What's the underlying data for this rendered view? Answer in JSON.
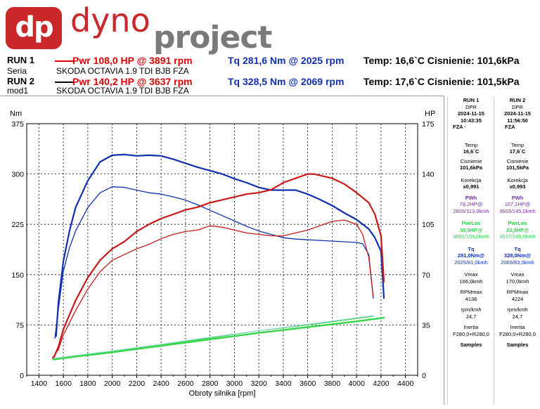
{
  "logo": {
    "mark": "dp",
    "word1": "dyno",
    "word2": "project"
  },
  "runs": [
    {
      "label": "RUN 1",
      "sub": "Seria",
      "pwr": "Pwr  108,0 HP @ 3891 rpm",
      "tq": "Tq 281,6 Nm @ 2025 rpm",
      "temp": "Temp: 16,6`C   Cisnienie: 101,6kPa",
      "car": "SKODA OCTAVIA 1.9 TDI BJB FZA",
      "color": "#e00000"
    },
    {
      "label": "RUN 2",
      "sub": "mod1",
      "pwr": "Pwr  140,2 HP @ 3637 rpm",
      "tq": "Tq 328,5 Nm @ 2069 rpm",
      "temp": "Temp: 17,6`C   Cisnienie: 101,5kPa",
      "car": "SKODA OCTAVIA 1.9 TDI BJB FZA",
      "color": "#e00000"
    }
  ],
  "side_panel": {
    "col1": {
      "head": [
        "RUN 1",
        "DPR",
        "2024-11-15",
        "10:43:35",
        "FZA ·"
      ],
      "temp_label": "Temp",
      "temp": "16,6`C",
      "cis_label": "Cisnienie",
      "cis": "101,6kPa",
      "kor_label": "Korekcja",
      "kor": "x0,991",
      "pwh_label": "PWh",
      "pwh": "78,2HP@",
      "pwh2": "2826/113,0kmh",
      "pwrlos_label": "PwrLos",
      "pwrlos": "38,5HP@",
      "pwrlos2": "3891/156,0kmh",
      "tq_label": "Tq",
      "tq": "281,0Nm@",
      "tq2": "2025/81,0kmh",
      "vmax_label": "Vmax",
      "vmax": "166,0kmh",
      "rpmmax_label": "RPMmax",
      "rpmmax": "4136",
      "rpmkmh_label": "rpm/kmh",
      "rpmkmh": "24,7",
      "inertia_label": "Inertia",
      "inertia": "F280,0+R280,0",
      "samples_label": "Samples"
    },
    "col2": {
      "head": [
        "RUN 2",
        "DPR",
        "2024-11-15",
        "11:56:50",
        "FZA"
      ],
      "temp_label": "Temp",
      "temp": "17,6`C",
      "cis_label": "Cisnienie",
      "cis": "101,5kPa",
      "kor_label": "Korekcja",
      "kor": "x0,993",
      "pwh_label": "PWh",
      "pwh": "107,1HP@",
      "pwh2": "3603/145,0kmh",
      "pwrlos_label": "PwrLos",
      "pwrlos": "33,3HP@",
      "pwrlos2": "3637/146,0kmh",
      "tq_label": "Tq",
      "tq": "328,0Nm@",
      "tq2": "2069/83,0kmh",
      "vmax_label": "Vmax",
      "vmax": "170,0kmh",
      "rpmmax_label": "RPMmax",
      "rpmmax": "4224",
      "rpmkmh_label": "rpm/kmh",
      "rpmkmh": "24,7",
      "inertia_label": "Inertia",
      "inertia": "F280,0+R280,0",
      "samples_label": "Samples"
    }
  },
  "chart_data": {
    "type": "line",
    "xlabel": "Obroty silnika [rpm]",
    "ylabel_left": "Nm",
    "ylabel_right": "HP",
    "xlim": [
      1300,
      4500
    ],
    "ylim_left": [
      0,
      375
    ],
    "ylim_right": [
      0,
      175
    ],
    "x_ticks": [
      1400,
      1600,
      1800,
      2000,
      2200,
      2400,
      2600,
      2800,
      3000,
      3200,
      3400,
      3600,
      3800,
      4000,
      4200,
      4400
    ],
    "y_ticks_left": [
      0,
      75,
      150,
      225,
      300,
      375
    ],
    "y_ticks_right": [
      0,
      35,
      70,
      105,
      140,
      175
    ],
    "grid": true,
    "series": [
      {
        "axis": "left",
        "color": "#1030b0",
        "width": 2.2,
        "points": [
          [
            1540,
            58
          ],
          [
            1560,
            110
          ],
          [
            1600,
            170
          ],
          [
            1650,
            215
          ],
          [
            1700,
            250
          ],
          [
            1800,
            290
          ],
          [
            1900,
            318
          ],
          [
            2000,
            328
          ],
          [
            2100,
            329
          ],
          [
            2200,
            327
          ],
          [
            2300,
            328
          ],
          [
            2400,
            327
          ],
          [
            2500,
            322
          ],
          [
            2600,
            316
          ],
          [
            2700,
            310
          ],
          [
            2800,
            305
          ],
          [
            2900,
            300
          ],
          [
            3000,
            293
          ],
          [
            3100,
            287
          ],
          [
            3200,
            280
          ],
          [
            3300,
            276
          ],
          [
            3400,
            276
          ],
          [
            3500,
            276
          ],
          [
            3600,
            270
          ],
          [
            3700,
            262
          ],
          [
            3800,
            253
          ],
          [
            3900,
            242
          ],
          [
            4000,
            232
          ],
          [
            4100,
            218
          ],
          [
            4150,
            205
          ],
          [
            4200,
            185
          ],
          [
            4224,
            115
          ]
        ]
      },
      {
        "axis": "left",
        "color": "#1030b0",
        "width": 1.3,
        "points": [
          [
            1530,
            55
          ],
          [
            1560,
            100
          ],
          [
            1600,
            155
          ],
          [
            1650,
            190
          ],
          [
            1700,
            215
          ],
          [
            1800,
            250
          ],
          [
            1900,
            272
          ],
          [
            2000,
            281
          ],
          [
            2100,
            280
          ],
          [
            2200,
            276
          ],
          [
            2300,
            272
          ],
          [
            2400,
            270
          ],
          [
            2500,
            266
          ],
          [
            2600,
            261
          ],
          [
            2700,
            254
          ],
          [
            2800,
            246
          ],
          [
            2900,
            238
          ],
          [
            3000,
            230
          ],
          [
            3100,
            222
          ],
          [
            3200,
            215
          ],
          [
            3300,
            210
          ],
          [
            3400,
            205
          ],
          [
            3500,
            203
          ],
          [
            3600,
            202
          ],
          [
            3700,
            201
          ],
          [
            3800,
            200
          ],
          [
            3900,
            199
          ],
          [
            4000,
            198
          ],
          [
            4050,
            196
          ],
          [
            4100,
            180
          ],
          [
            4136,
            115
          ]
        ]
      },
      {
        "axis": "right",
        "color": "#c81818",
        "width": 2.2,
        "points": [
          [
            1520,
            12
          ],
          [
            1560,
            20
          ],
          [
            1600,
            32
          ],
          [
            1700,
            52
          ],
          [
            1800,
            68
          ],
          [
            1900,
            80
          ],
          [
            2000,
            88
          ],
          [
            2100,
            93
          ],
          [
            2200,
            100
          ],
          [
            2300,
            105
          ],
          [
            2400,
            109
          ],
          [
            2500,
            112
          ],
          [
            2600,
            115
          ],
          [
            2700,
            117
          ],
          [
            2800,
            120
          ],
          [
            2900,
            122
          ],
          [
            3000,
            124
          ],
          [
            3100,
            126
          ],
          [
            3200,
            127
          ],
          [
            3300,
            129
          ],
          [
            3400,
            134
          ],
          [
            3500,
            137
          ],
          [
            3600,
            140
          ],
          [
            3650,
            140
          ],
          [
            3700,
            139
          ],
          [
            3800,
            137
          ],
          [
            3900,
            133
          ],
          [
            4000,
            127
          ],
          [
            4100,
            120
          ],
          [
            4150,
            112
          ],
          [
            4200,
            97
          ],
          [
            4224,
            65
          ]
        ]
      },
      {
        "axis": "right",
        "color": "#c81818",
        "width": 1.3,
        "points": [
          [
            1510,
            12
          ],
          [
            1560,
            18
          ],
          [
            1600,
            28
          ],
          [
            1700,
            45
          ],
          [
            1800,
            60
          ],
          [
            1900,
            72
          ],
          [
            2000,
            80
          ],
          [
            2100,
            84
          ],
          [
            2200,
            88
          ],
          [
            2300,
            91
          ],
          [
            2400,
            95
          ],
          [
            2500,
            98
          ],
          [
            2600,
            100
          ],
          [
            2700,
            101
          ],
          [
            2800,
            104
          ],
          [
            2900,
            103
          ],
          [
            3000,
            101
          ],
          [
            3100,
            99
          ],
          [
            3200,
            98
          ],
          [
            3300,
            97
          ],
          [
            3400,
            97
          ],
          [
            3500,
            99
          ],
          [
            3600,
            101
          ],
          [
            3700,
            104
          ],
          [
            3800,
            107
          ],
          [
            3900,
            108
          ],
          [
            4000,
            105
          ],
          [
            4050,
            98
          ],
          [
            4100,
            82
          ],
          [
            4136,
            55
          ]
        ]
      },
      {
        "axis": "right",
        "color": "#35d64a",
        "width": 2.4,
        "points": [
          [
            1520,
            11
          ],
          [
            1700,
            13
          ],
          [
            2000,
            16
          ],
          [
            2400,
            20.5
          ],
          [
            2800,
            25
          ],
          [
            3200,
            29.5
          ],
          [
            3600,
            33.5
          ],
          [
            4000,
            37.5
          ],
          [
            4224,
            40
          ]
        ]
      },
      {
        "axis": "right",
        "color": "#35d64a",
        "width": 1.3,
        "points": [
          [
            1510,
            11
          ],
          [
            1700,
            13.2
          ],
          [
            2000,
            16.5
          ],
          [
            2400,
            21
          ],
          [
            2800,
            26
          ],
          [
            3200,
            31
          ],
          [
            3600,
            35
          ],
          [
            4000,
            39.5
          ],
          [
            4136,
            41
          ]
        ]
      },
      {
        "axis": "right",
        "color": "#9fd8e8",
        "width": 1,
        "points": [
          [
            1520,
            12
          ],
          [
            2000,
            17
          ],
          [
            2800,
            26.5
          ],
          [
            3600,
            35.5
          ],
          [
            4136,
            41.5
          ]
        ]
      }
    ]
  }
}
